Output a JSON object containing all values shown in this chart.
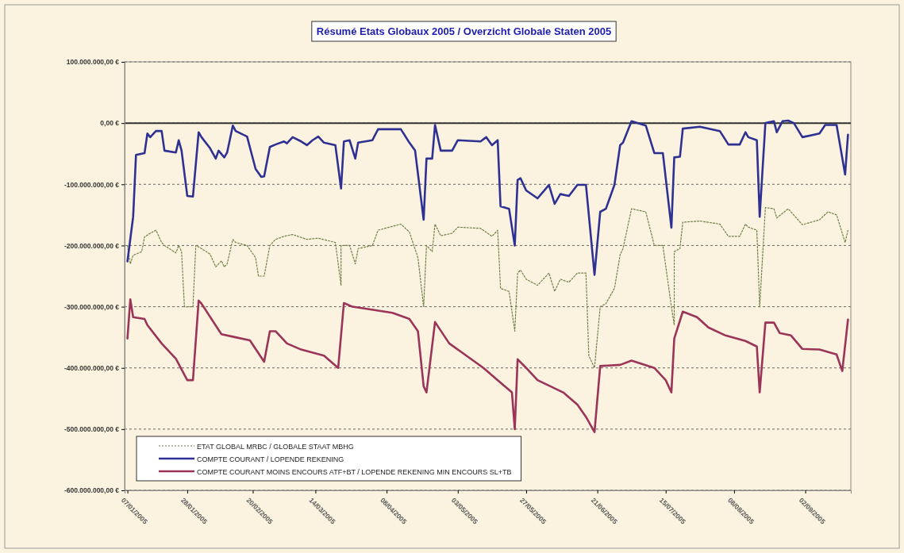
{
  "chart_data": {
    "type": "line",
    "title": "Résumé Etats Globaux 2005 / Overzicht Globale Staten 2005",
    "xlim": [
      "2005-01-06",
      "2005-09-18"
    ],
    "xticks": [
      {
        "value": "2005-01-07",
        "label": "07/01/2005"
      },
      {
        "value": "2005-01-28",
        "label": "28/01/2005"
      },
      {
        "value": "2005-02-20",
        "label": "20/02/2005"
      },
      {
        "value": "2005-03-14",
        "label": "14/03/2005"
      },
      {
        "value": "2005-04-08",
        "label": "08/04/2005"
      },
      {
        "value": "2005-05-03",
        "label": "03/05/2005"
      },
      {
        "value": "2005-05-27",
        "label": "27/05/2005"
      },
      {
        "value": "2005-06-21",
        "label": "21/06/2005"
      },
      {
        "value": "2005-07-15",
        "label": "15/07/2005"
      },
      {
        "value": "2005-08-08",
        "label": "08/08/2005"
      },
      {
        "value": "2005-09-02",
        "label": "02/09/2005"
      }
    ],
    "ylim": [
      -600000000,
      100000000
    ],
    "yticks": [
      {
        "value": 100000000,
        "label": "100.000.000,00 €"
      },
      {
        "value": 0,
        "label": "0,00 €"
      },
      {
        "value": -100000000,
        "label": "-100.000.000,00 €"
      },
      {
        "value": -200000000,
        "label": "-200.000.000,00 €"
      },
      {
        "value": -300000000,
        "label": "-300.000.000,00 €"
      },
      {
        "value": -400000000,
        "label": "-400.000.000,00 €"
      },
      {
        "value": -500000000,
        "label": "-500.000.000,00 €"
      },
      {
        "value": -600000000,
        "label": "-600.000.000,00 €"
      }
    ],
    "grid": "y",
    "legend": "bottom left",
    "ref_lines": [
      {
        "axis": "y",
        "value": 0,
        "color": "#333333",
        "line_style": "solid"
      }
    ],
    "series": [
      {
        "name": "ETAT GLOBAL MRBC / GLOBALE STAAT MBHG",
        "color": "#6f7f48",
        "line_style": "dotted",
        "x": [
          "2005-01-07",
          "2005-01-08",
          "2005-01-09",
          "2005-01-12",
          "2005-01-13",
          "2005-01-15",
          "2005-01-17",
          "2005-01-19",
          "2005-01-20",
          "2005-01-24",
          "2005-01-25",
          "2005-01-26",
          "2005-01-27",
          "2005-01-30",
          "2005-01-31",
          "2005-02-02",
          "2005-02-05",
          "2005-02-07",
          "2005-02-09",
          "2005-02-10",
          "2005-02-11",
          "2005-02-13",
          "2005-02-14",
          "2005-02-18",
          "2005-02-21",
          "2005-02-22",
          "2005-02-24",
          "2005-02-26",
          "2005-02-28",
          "2005-03-03",
          "2005-03-06",
          "2005-03-11",
          "2005-03-15",
          "2005-03-21",
          "2005-03-23",
          "2005-03-23",
          "2005-03-26",
          "2005-03-28",
          "2005-03-29",
          "2005-04-03",
          "2005-04-05",
          "2005-04-13",
          "2005-04-16",
          "2005-04-19",
          "2005-04-21",
          "2005-04-22",
          "2005-04-24",
          "2005-04-25",
          "2005-04-27",
          "2005-05-01",
          "2005-05-03",
          "2005-05-11",
          "2005-05-15",
          "2005-05-17",
          "2005-05-18",
          "2005-05-21",
          "2005-05-23",
          "2005-05-24",
          "2005-05-25",
          "2005-05-27",
          "2005-05-31",
          "2005-06-04",
          "2005-06-06",
          "2005-06-08",
          "2005-06-11",
          "2005-06-14",
          "2005-06-17",
          "2005-06-18",
          "2005-06-20",
          "2005-06-22",
          "2005-06-24",
          "2005-06-27",
          "2005-06-29",
          "2005-06-30",
          "2005-07-03",
          "2005-07-08",
          "2005-07-11",
          "2005-07-14",
          "2005-07-17",
          "2005-07-18",
          "2005-07-18",
          "2005-07-20",
          "2005-07-21",
          "2005-07-27",
          "2005-08-03",
          "2005-08-06",
          "2005-08-10",
          "2005-08-12",
          "2005-08-13",
          "2005-08-16",
          "2005-08-17",
          "2005-08-19",
          "2005-08-22",
          "2005-08-23",
          "2005-08-27",
          "2005-09-01",
          "2005-09-07",
          "2005-09-10",
          "2005-09-13",
          "2005-09-16",
          "2005-09-17"
        ],
        "values": [
          -200000000,
          -230000000,
          -216000000,
          -210000000,
          -186000000,
          -180000000,
          -175000000,
          -195000000,
          -200000000,
          -212000000,
          -200000000,
          -210000000,
          -300000000,
          -300000000,
          -200000000,
          -205000000,
          -214000000,
          -235000000,
          -225000000,
          -235000000,
          -230000000,
          -190000000,
          -195000000,
          -200000000,
          -220000000,
          -250000000,
          -250000000,
          -200000000,
          -190000000,
          -185000000,
          -182000000,
          -190000000,
          -188000000,
          -195000000,
          -265000000,
          -200000000,
          -200000000,
          -230000000,
          -205000000,
          -200000000,
          -175000000,
          -165000000,
          -178000000,
          -220000000,
          -300000000,
          -200000000,
          -210000000,
          -165000000,
          -184000000,
          -180000000,
          -170000000,
          -172000000,
          -185000000,
          -175000000,
          -270000000,
          -275000000,
          -340000000,
          -245000000,
          -240000000,
          -255000000,
          -265000000,
          -245000000,
          -275000000,
          -255000000,
          -260000000,
          -245000000,
          -245000000,
          -380000000,
          -400000000,
          -300000000,
          -295000000,
          -270000000,
          -215000000,
          -205000000,
          -140000000,
          -145000000,
          -200000000,
          -200000000,
          -300000000,
          -330000000,
          -210000000,
          -205000000,
          -162000000,
          -160000000,
          -165000000,
          -185000000,
          -185000000,
          -165000000,
          -170000000,
          -175000000,
          -300000000,
          -138000000,
          -140000000,
          -155000000,
          -140000000,
          -166000000,
          -158000000,
          -145000000,
          -150000000,
          -195000000,
          -175000000
        ]
      },
      {
        "name": "COMPTE COURANT / LOPENDE REKENING",
        "color": "#2e3192",
        "line_style": "solid",
        "x": [
          "2005-01-07",
          "2005-01-09",
          "2005-01-10",
          "2005-01-13",
          "2005-01-14",
          "2005-01-15",
          "2005-01-17",
          "2005-01-19",
          "2005-01-20",
          "2005-01-24",
          "2005-01-25",
          "2005-01-26",
          "2005-01-28",
          "2005-01-30",
          "2005-02-01",
          "2005-02-02",
          "2005-02-05",
          "2005-02-07",
          "2005-02-08",
          "2005-02-10",
          "2005-02-11",
          "2005-02-13",
          "2005-02-14",
          "2005-02-18",
          "2005-02-21",
          "2005-02-23",
          "2005-02-24",
          "2005-02-26",
          "2005-02-28",
          "2005-03-03",
          "2005-03-04",
          "2005-03-06",
          "2005-03-09",
          "2005-03-11",
          "2005-03-13",
          "2005-03-15",
          "2005-03-17",
          "2005-03-21",
          "2005-03-23",
          "2005-03-24",
          "2005-03-26",
          "2005-03-28",
          "2005-03-29",
          "2005-04-03",
          "2005-04-05",
          "2005-04-13",
          "2005-04-16",
          "2005-04-18",
          "2005-04-21",
          "2005-04-22",
          "2005-04-24",
          "2005-04-25",
          "2005-04-27",
          "2005-05-01",
          "2005-05-03",
          "2005-05-11",
          "2005-05-13",
          "2005-05-15",
          "2005-05-17",
          "2005-05-18",
          "2005-05-21",
          "2005-05-23",
          "2005-05-24",
          "2005-05-25",
          "2005-05-27",
          "2005-05-31",
          "2005-06-04",
          "2005-06-06",
          "2005-06-08",
          "2005-06-11",
          "2005-06-14",
          "2005-06-17",
          "2005-06-20",
          "2005-06-22",
          "2005-06-24",
          "2005-06-27",
          "2005-06-29",
          "2005-06-30",
          "2005-07-03",
          "2005-07-08",
          "2005-07-11",
          "2005-07-14",
          "2005-07-17",
          "2005-07-18",
          "2005-07-20",
          "2005-07-21",
          "2005-07-27",
          "2005-08-03",
          "2005-08-06",
          "2005-08-10",
          "2005-08-12",
          "2005-08-13",
          "2005-08-16",
          "2005-08-17",
          "2005-08-19",
          "2005-08-22",
          "2005-08-23",
          "2005-08-25",
          "2005-08-27",
          "2005-08-29",
          "2005-09-01",
          "2005-09-07",
          "2005-09-09",
          "2005-09-13",
          "2005-09-16",
          "2005-09-17"
        ],
        "values": [
          -226000000,
          -153000000,
          -52000000,
          -49000000,
          -17000000,
          -23000000,
          -13000000,
          -13000000,
          -45000000,
          -48000000,
          -28000000,
          -45000000,
          -119000000,
          -120000000,
          -15000000,
          -23000000,
          -41000000,
          -58000000,
          -45000000,
          -56000000,
          -48000000,
          -4000000,
          -13000000,
          -22000000,
          -75000000,
          -88000000,
          -87000000,
          -39000000,
          -35000000,
          -30000000,
          -33000000,
          -23000000,
          -30000000,
          -36000000,
          -28000000,
          -22000000,
          -32000000,
          -36000000,
          -107000000,
          -30000000,
          -28000000,
          -58000000,
          -32000000,
          -28000000,
          -10000000,
          -10000000,
          -32000000,
          -45000000,
          -158000000,
          -58000000,
          -58000000,
          -3000000,
          -45000000,
          -45000000,
          -28000000,
          -30000000,
          -23000000,
          -36000000,
          -28000000,
          -136000000,
          -140000000,
          -200000000,
          -93000000,
          -90000000,
          -110000000,
          -123000000,
          -101000000,
          -132000000,
          -116000000,
          -119000000,
          -101000000,
          -101000000,
          -248000000,
          -145000000,
          -140000000,
          -101000000,
          -36000000,
          -32000000,
          3000000,
          -4000000,
          -49000000,
          -49000000,
          -171000000,
          -56000000,
          -55000000,
          -9000000,
          -6000000,
          -13000000,
          -35000000,
          -35000000,
          -15000000,
          -23000000,
          -28000000,
          -153000000,
          0,
          3000000,
          -15000000,
          3000000,
          4000000,
          0,
          -23000000,
          -17000000,
          -3000000,
          -3000000,
          -84000000,
          -19000000
        ]
      },
      {
        "name": "COMPTE COURANT MOINS ENCOURS ATF+BT / LOPENDE REKENING MIN ENCOURS SL+TB",
        "color": "#9a3458",
        "line_style": "solid",
        "x": [
          "2005-01-07",
          "2005-01-08",
          "2005-01-09",
          "2005-01-13",
          "2005-01-14",
          "2005-01-19",
          "2005-01-24",
          "2005-01-28",
          "2005-01-30",
          "2005-02-01",
          "2005-02-02",
          "2005-02-09",
          "2005-02-14",
          "2005-02-19",
          "2005-02-24",
          "2005-02-26",
          "2005-02-28",
          "2005-03-04",
          "2005-03-09",
          "2005-03-17",
          "2005-03-22",
          "2005-03-24",
          "2005-03-27",
          "2005-04-10",
          "2005-04-16",
          "2005-04-19",
          "2005-04-21",
          "2005-04-22",
          "2005-04-25",
          "2005-04-30",
          "2005-05-06",
          "2005-05-12",
          "2005-05-17",
          "2005-05-22",
          "2005-05-23",
          "2005-05-24",
          "2005-05-27",
          "2005-05-31",
          "2005-06-09",
          "2005-06-14",
          "2005-06-17",
          "2005-06-20",
          "2005-06-22",
          "2005-06-29",
          "2005-07-03",
          "2005-07-11",
          "2005-07-15",
          "2005-07-17",
          "2005-07-18",
          "2005-07-21",
          "2005-07-26",
          "2005-07-30",
          "2005-08-05",
          "2005-08-12",
          "2005-08-16",
          "2005-08-17",
          "2005-08-19",
          "2005-08-22",
          "2005-08-24",
          "2005-08-28",
          "2005-09-01",
          "2005-09-07",
          "2005-09-13",
          "2005-09-15",
          "2005-09-17"
        ],
        "values": [
          -352000000,
          -288000000,
          -317000000,
          -320000000,
          -330000000,
          -360000000,
          -385000000,
          -420000000,
          -420000000,
          -290000000,
          -295000000,
          -345000000,
          -350000000,
          -355000000,
          -390000000,
          -340000000,
          -340000000,
          -360000000,
          -370000000,
          -380000000,
          -400000000,
          -294000000,
          -300000000,
          -310000000,
          -320000000,
          -340000000,
          -430000000,
          -440000000,
          -325000000,
          -360000000,
          -380000000,
          -400000000,
          -420000000,
          -440000000,
          -500000000,
          -386000000,
          -400000000,
          -420000000,
          -440000000,
          -460000000,
          -480000000,
          -505000000,
          -397000000,
          -395000000,
          -388000000,
          -400000000,
          -420000000,
          -440000000,
          -352000000,
          -308000000,
          -317000000,
          -334000000,
          -347000000,
          -356000000,
          -365000000,
          -440000000,
          -326000000,
          -326000000,
          -343000000,
          -347000000,
          -369000000,
          -370000000,
          -378000000,
          -405000000,
          -321000000
        ]
      }
    ]
  }
}
